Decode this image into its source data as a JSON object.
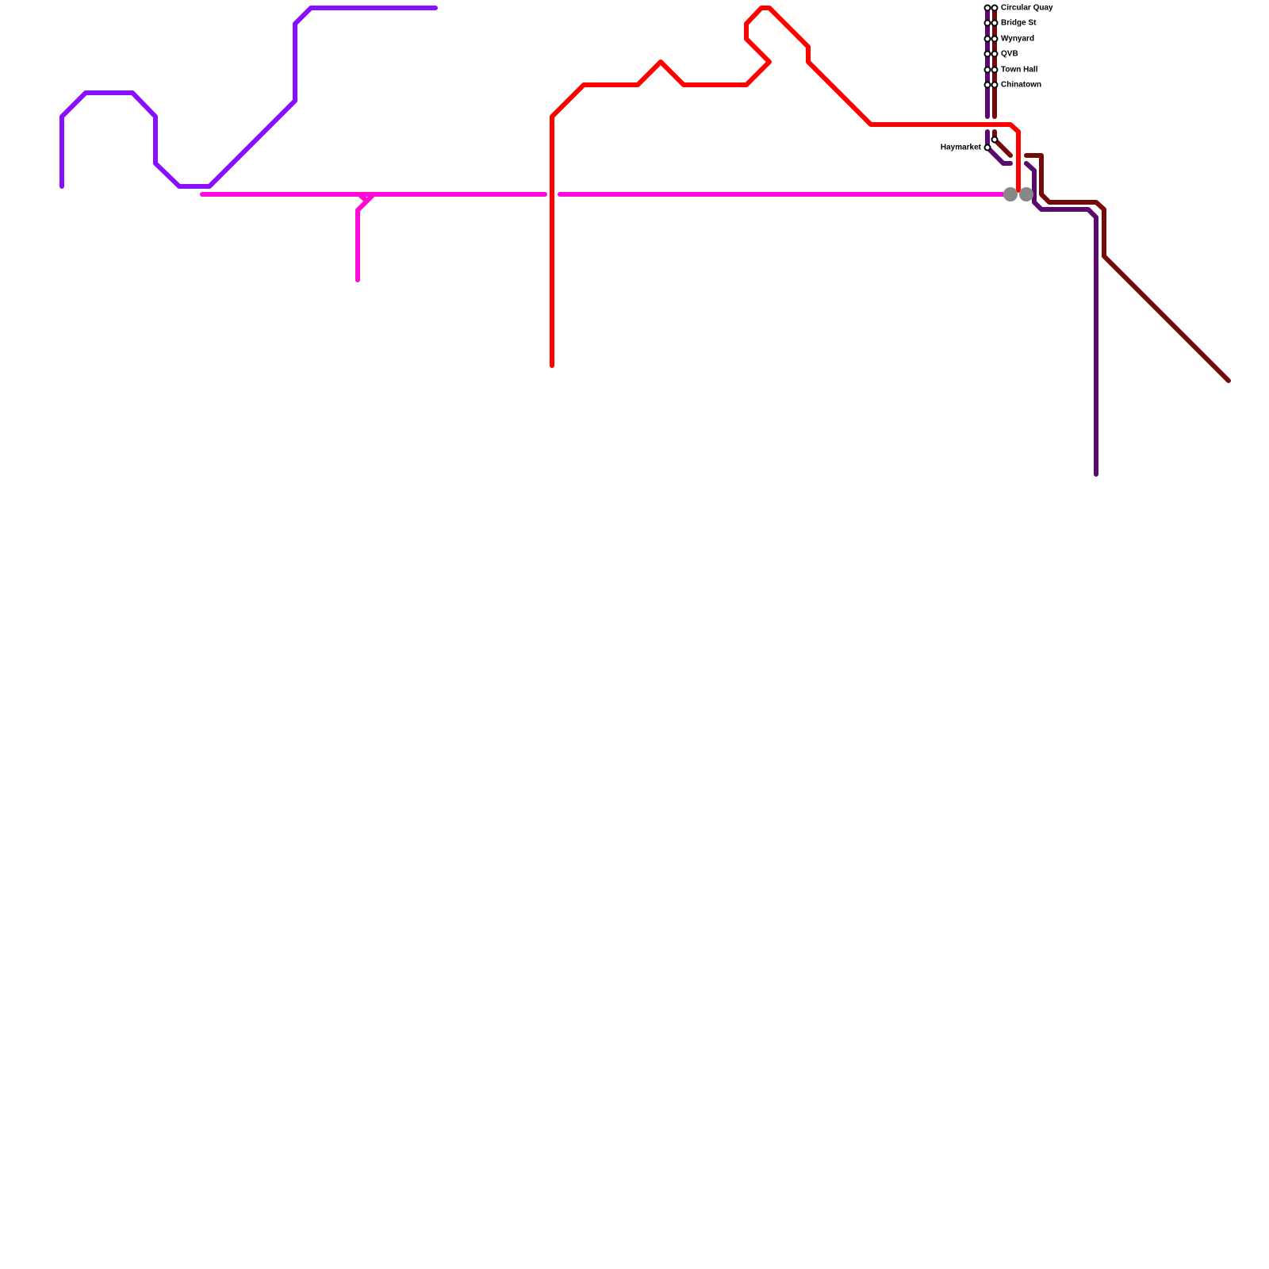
{
  "stations": [
    {
      "label": "Circular Quay"
    },
    {
      "label": "Bridge St"
    },
    {
      "label": "Wynyard"
    },
    {
      "label": "QVB"
    },
    {
      "label": "Town Hall"
    },
    {
      "label": "Chinatown"
    },
    {
      "label": "Haymarket"
    }
  ]
}
